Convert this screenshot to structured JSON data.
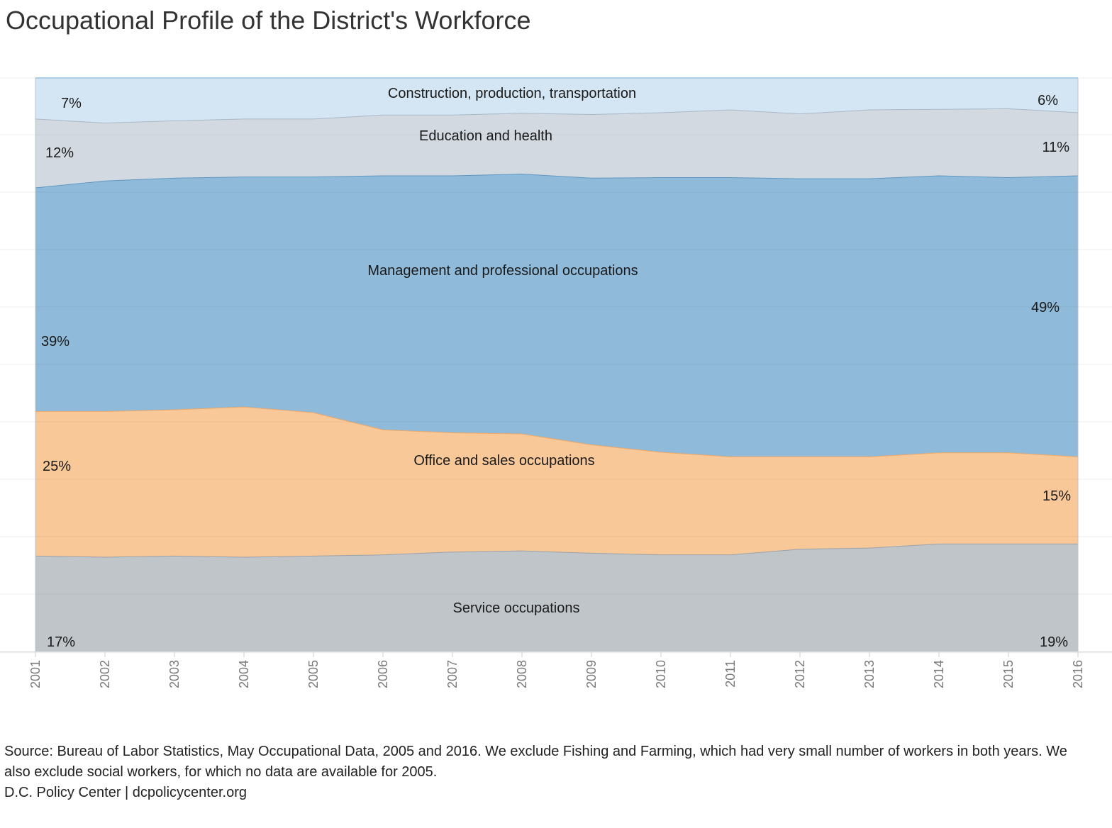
{
  "title": "Occupational Profile of the District's Workforce",
  "footer": {
    "source": "Source: Bureau of Labor Statistics, May Occupational Data, 2005 and 2016. We exclude Fishing and Farming, which had  very small number of workers in both years. We also exclude social workers, for which no data are available for 2005.",
    "credit": "D.C. Policy Center | dcpolicycenter.org"
  },
  "chart_data": {
    "type": "area",
    "stacked": true,
    "normalized_percent": true,
    "x": [
      2001,
      2002,
      2003,
      2004,
      2005,
      2006,
      2007,
      2008,
      2009,
      2010,
      2011,
      2012,
      2013,
      2014,
      2015,
      2016
    ],
    "ylim": [
      0,
      100
    ],
    "grid": true,
    "legend": "none",
    "series": [
      {
        "name": "Service occupations",
        "color": "#c0c5ca",
        "line_color": "#9aa1a8",
        "values": [
          16.7,
          16.5,
          16.7,
          16.5,
          16.7,
          16.9,
          17.4,
          17.6,
          17.2,
          16.9,
          16.9,
          17.9,
          18.1,
          18.8,
          18.8,
          18.8
        ],
        "start_label": "17%",
        "end_label": "19%"
      },
      {
        "name": "Office and sales occupations",
        "color": "#f8c898",
        "line_color": "#f0a866",
        "values": [
          25.2,
          25.4,
          25.5,
          26.2,
          25.0,
          21.8,
          20.8,
          20.4,
          18.9,
          17.9,
          17.1,
          16.1,
          15.9,
          15.9,
          15.9,
          15.2
        ],
        "start_label": "25%",
        "end_label": "15%"
      },
      {
        "name": "Management and professional occupations",
        "color": "#8fbad9",
        "line_color": "#5f97c2",
        "values": [
          39.0,
          40.2,
          40.4,
          40.1,
          41.1,
          44.3,
          44.8,
          45.3,
          46.5,
          47.9,
          48.7,
          48.5,
          48.5,
          48.3,
          48.0,
          49.0
        ],
        "start_label": "39%",
        "end_label": "49%"
      },
      {
        "name": "Education and health",
        "color": "#d3d9e1",
        "line_color": "#a9b7c7",
        "values": [
          12.0,
          10.1,
          10.0,
          10.1,
          10.1,
          10.6,
          10.6,
          10.6,
          11.1,
          11.3,
          11.8,
          11.3,
          12.0,
          11.6,
          12.0,
          11.0
        ],
        "start_label": "12%",
        "end_label": "11%"
      },
      {
        "name": "Construction, production, transportation",
        "color": "#d4e6f4",
        "line_color": "#aecde6",
        "values": [
          7.1,
          7.8,
          7.4,
          7.1,
          7.1,
          6.4,
          6.4,
          6.1,
          6.3,
          6.0,
          5.5,
          6.2,
          5.5,
          5.4,
          5.3,
          6.0
        ],
        "start_label": "7%",
        "end_label": "6%"
      }
    ]
  }
}
